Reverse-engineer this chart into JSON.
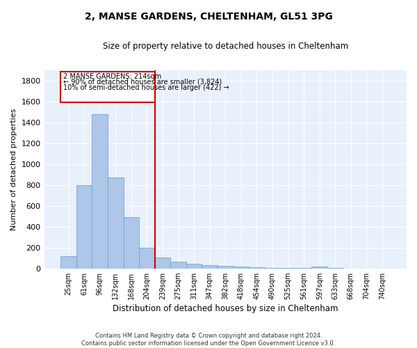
{
  "title": "2, MANSE GARDENS, CHELTENHAM, GL51 3PG",
  "subtitle": "Size of property relative to detached houses in Cheltenham",
  "xlabel": "Distribution of detached houses by size in Cheltenham",
  "ylabel": "Number of detached properties",
  "categories": [
    "25sqm",
    "61sqm",
    "96sqm",
    "132sqm",
    "168sqm",
    "204sqm",
    "239sqm",
    "275sqm",
    "311sqm",
    "347sqm",
    "382sqm",
    "418sqm",
    "454sqm",
    "490sqm",
    "525sqm",
    "561sqm",
    "597sqm",
    "633sqm",
    "668sqm",
    "704sqm",
    "740sqm"
  ],
  "values": [
    120,
    800,
    1480,
    870,
    490,
    200,
    105,
    65,
    45,
    30,
    25,
    20,
    8,
    5,
    3,
    2,
    15,
    2,
    1,
    1,
    0
  ],
  "bar_color": "#aec6e8",
  "bar_edge_color": "#5a9fd4",
  "background_color": "#e8f0fb",
  "grid_color": "#ffffff",
  "property_label": "2 MANSE GARDENS: 214sqm",
  "annotation_line1": "← 90% of detached houses are smaller (3,824)",
  "annotation_line2": "10% of semi-detached houses are larger (422) →",
  "annotation_box_color": "#ffffff",
  "annotation_box_edge": "#cc0000",
  "vline_color": "#cc0000",
  "ylim": [
    0,
    1900
  ],
  "yticks": [
    0,
    200,
    400,
    600,
    800,
    1000,
    1200,
    1400,
    1600,
    1800
  ],
  "footer1": "Contains HM Land Registry data © Crown copyright and database right 2024.",
  "footer2": "Contains public sector information licensed under the Open Government Licence v3.0."
}
